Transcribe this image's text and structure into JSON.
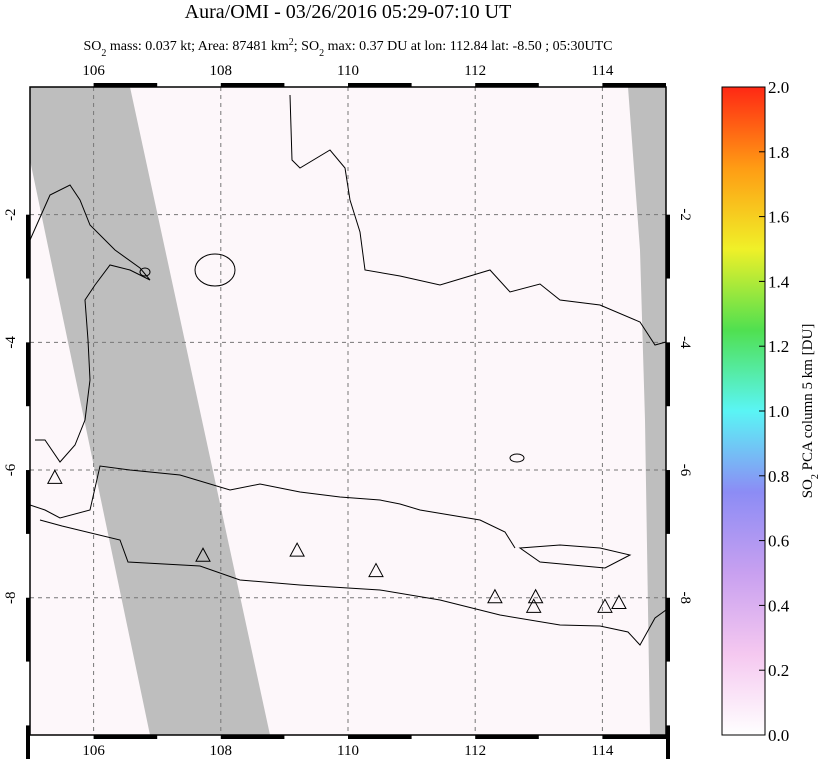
{
  "chart_data": {
    "type": "map",
    "title": "Aura/OMI - 03/26/2016 05:29-07:10 UT",
    "subtitle": [
      {
        "text": "SO"
      },
      {
        "sub": "2"
      },
      {
        "text": " mass: 0.037 kt; Area: 87481 km"
      },
      {
        "sup": "2"
      },
      {
        "text": "; SO"
      },
      {
        "sub": "2"
      },
      {
        "text": " max: 0.37 DU at lon: 112.84 lat: -8.50 ; 05:30UTC"
      }
    ],
    "xlim": [
      105,
      115
    ],
    "ylim": [
      -10.15,
      0
    ],
    "xticks": [
      106,
      108,
      110,
      112,
      114
    ],
    "yticks": [
      -2,
      -4,
      -6,
      -8
    ],
    "grid": true,
    "volcanoes": {
      "lon": [
        105.39,
        107.72,
        109.2,
        110.44,
        112.31,
        112.95,
        112.92,
        114.04,
        114.26
      ],
      "lat": [
        -6.13,
        -7.35,
        -7.27,
        -7.59,
        -8.0,
        -8.0,
        -8.15,
        -8.15,
        -8.09
      ]
    },
    "colorbar": {
      "label": [
        {
          "text": "SO"
        },
        {
          "sub": "2"
        },
        {
          "text": " PCA column 5 km [DU]"
        }
      ],
      "lim": [
        0,
        2
      ],
      "ticks": [
        {
          "value": 0,
          "label": "0.0"
        },
        {
          "value": 0.2,
          "label": "0.2"
        },
        {
          "value": 0.4,
          "label": "0.4"
        },
        {
          "value": 0.6,
          "label": "0.6"
        },
        {
          "value": 0.8,
          "label": "0.8"
        },
        {
          "value": 1,
          "label": "1.0"
        },
        {
          "value": 1.2,
          "label": "1.2"
        },
        {
          "value": 1.4,
          "label": "1.4"
        },
        {
          "value": 1.6,
          "label": "1.6"
        },
        {
          "value": 1.8,
          "label": "1.8"
        },
        {
          "value": 2,
          "label": "2.0"
        }
      ],
      "colors": [
        "#ffffff",
        "#f5c8f0",
        "#c8a0f0",
        "#8c8cf5",
        "#5af5f5",
        "#50e050",
        "#f0f028",
        "#ff9c14",
        "#ff2814"
      ]
    }
  }
}
